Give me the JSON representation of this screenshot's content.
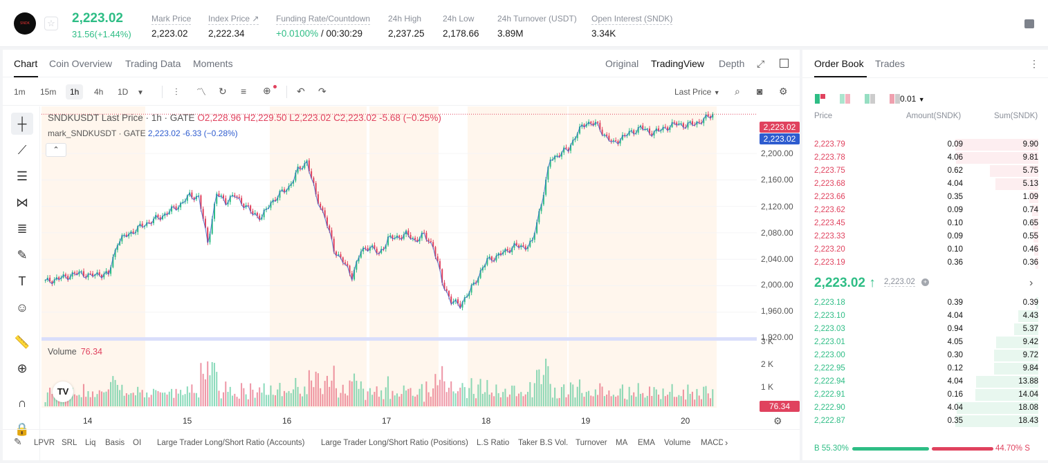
{
  "header": {
    "logo_text": "SNDK",
    "star_icon": "star-icon",
    "last_price": "2,223.02",
    "change": "31.56(+1.44%)",
    "stats": [
      {
        "label": "Mark Price",
        "value": "2,223.02"
      },
      {
        "label": "Index Price ↗",
        "value": "2,222.34"
      },
      {
        "label": "Funding Rate/Countdown",
        "value_green": "+0.0100%",
        "value": " / 00:30:29"
      },
      {
        "label": "24h High",
        "value": "2,237.25"
      },
      {
        "label": "24h Low",
        "value": "2,178.66"
      },
      {
        "label": "24h Turnover (USDT)",
        "value": "3.89M"
      },
      {
        "label": "Open Interest (SNDK)",
        "value": "3.34K"
      }
    ]
  },
  "chart_tabs": [
    "Chart",
    "Coin Overview",
    "Trading Data",
    "Moments"
  ],
  "view_tabs": [
    "Original",
    "TradingView",
    "Depth"
  ],
  "timeframes": [
    "1m",
    "15m",
    "1h",
    "4h",
    "1D"
  ],
  "price_source": "Last Price",
  "legend": {
    "line1_prefix": "SNDKUSDT Last Price · 1h · GATE",
    "o": "O2,228.96",
    "h": "H2,229.50",
    "l": "L2,223.02",
    "c": "C2,223.02",
    "chg": "-5.68 (−0.25%)",
    "line2_prefix": "mark_SNDKUSDT · GATE",
    "line2_vals": "2,223.02 -6.33 (−0.28%)"
  },
  "price_tags": {
    "last": "2,223.02",
    "mark": "2,223.02",
    "volume": "76.34"
  },
  "volume_label": "Volume",
  "volume_value": "76.34",
  "colors": {
    "up": "#2ebd85",
    "down": "#e0425e",
    "mark_line": "#2e5ccf"
  },
  "chart_data": {
    "type": "candlestick",
    "symbol": "SNDKUSDT",
    "interval": "1h",
    "x_labels": [
      "14",
      "15",
      "16",
      "17",
      "18",
      "19",
      "20"
    ],
    "y_ticks": [
      "2,200.00",
      "2,160.00",
      "2,120.00",
      "2,080.00",
      "2,040.00",
      "2,000.00",
      "1,960.00",
      "1,920.00"
    ],
    "ylim": [
      1920,
      2230
    ],
    "volume_ticks": [
      "3 K",
      "2 K",
      "1 K"
    ],
    "close_path": [
      1990,
      1993,
      1996,
      2000,
      2002,
      1998,
      2001,
      2000,
      2045,
      2055,
      2062,
      2070,
      2076,
      2082,
      2090,
      2098,
      2110,
      2108,
      2045,
      2112,
      2102,
      2110,
      2098,
      2085,
      2080,
      2100,
      2112,
      2122,
      2145,
      2158,
      2110,
      2080,
      2035,
      2018,
      1998,
      2032,
      2040,
      2028,
      2050,
      2052,
      2056,
      2048,
      2055,
      2040,
      1990,
      1962,
      1958,
      1975,
      1998,
      2020,
      2025,
      2032,
      2040,
      2038,
      2045,
      2100,
      2160,
      2168,
      2175,
      2198,
      2212,
      2210,
      2195,
      2182,
      2192,
      2198,
      2205,
      2198,
      2200,
      2206,
      2210,
      2208,
      2210,
      2216,
      2223
    ]
  },
  "indicators": [
    "LPVR",
    "SRL",
    "Liq",
    "Basis",
    "OI",
    "Large Trader Long/Short Ratio (Accounts)",
    "Large Trader Long/Short Ratio (Positions)",
    "L.S Ratio",
    "Taker B.S Vol.",
    "Turnover",
    "MA",
    "EMA",
    "Volume",
    "MACD"
  ],
  "order_book": {
    "tabs": [
      "Order Book",
      "Trades"
    ],
    "precision": "0.01",
    "columns": [
      "Price",
      "Amount(SNDK)",
      "Sum(SNDK)"
    ],
    "asks": [
      {
        "price": "2,223.79",
        "amount": "0.09",
        "sum": "9.90",
        "depth": 1.0
      },
      {
        "price": "2,223.78",
        "amount": "4.06",
        "sum": "9.81",
        "depth": 0.99
      },
      {
        "price": "2,223.75",
        "amount": "0.62",
        "sum": "5.75",
        "depth": 0.58
      },
      {
        "price": "2,223.68",
        "amount": "4.04",
        "sum": "5.13",
        "depth": 0.52
      },
      {
        "price": "2,223.66",
        "amount": "0.35",
        "sum": "1.09",
        "depth": 0.11
      },
      {
        "price": "2,223.62",
        "amount": "0.09",
        "sum": "0.74",
        "depth": 0.075
      },
      {
        "price": "2,223.45",
        "amount": "0.10",
        "sum": "0.65",
        "depth": 0.066
      },
      {
        "price": "2,223.33",
        "amount": "0.09",
        "sum": "0.55",
        "depth": 0.056
      },
      {
        "price": "2,223.20",
        "amount": "0.10",
        "sum": "0.46",
        "depth": 0.046
      },
      {
        "price": "2,223.19",
        "amount": "0.36",
        "sum": "0.36",
        "depth": 0.036
      }
    ],
    "mid_price": "2,223.02 ↑",
    "mid_mark": "2,223.02",
    "bids": [
      {
        "price": "2,223.18",
        "amount": "0.39",
        "sum": "0.39",
        "depth": 0.021
      },
      {
        "price": "2,223.10",
        "amount": "4.04",
        "sum": "4.43",
        "depth": 0.24
      },
      {
        "price": "2,223.03",
        "amount": "0.94",
        "sum": "5.37",
        "depth": 0.29
      },
      {
        "price": "2,223.01",
        "amount": "4.05",
        "sum": "9.42",
        "depth": 0.51
      },
      {
        "price": "2,223.00",
        "amount": "0.30",
        "sum": "9.72",
        "depth": 0.53
      },
      {
        "price": "2,222.95",
        "amount": "0.12",
        "sum": "9.84",
        "depth": 0.53
      },
      {
        "price": "2,222.94",
        "amount": "4.04",
        "sum": "13.88",
        "depth": 0.75
      },
      {
        "price": "2,222.91",
        "amount": "0.16",
        "sum": "14.04",
        "depth": 0.76
      },
      {
        "price": "2,222.90",
        "amount": "4.04",
        "sum": "18.08",
        "depth": 0.98
      },
      {
        "price": "2,222.87",
        "amount": "0.35",
        "sum": "18.43",
        "depth": 1.0
      }
    ],
    "buy_ratio": "B 55.30%",
    "sell_ratio": "44.70% S",
    "buy_fraction": 0.553
  }
}
